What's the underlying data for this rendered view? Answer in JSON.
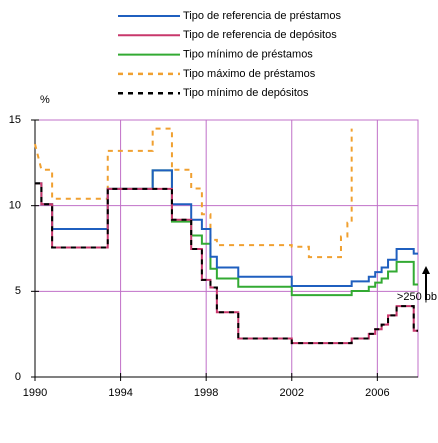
{
  "chart_data": {
    "type": "line",
    "y_axis_label": "%",
    "annotation": ">250 pb",
    "xlim": [
      1990,
      2007.9
    ],
    "xticks": [
      1990,
      1994,
      1998,
      2002,
      2006
    ],
    "ylim": [
      0,
      15
    ],
    "yticks": [
      0,
      5,
      10,
      15
    ],
    "grid": true,
    "legend": "top",
    "series": [
      {
        "name": "Tipo de referencia de préstamos",
        "color": "#1f5fbf",
        "dash": false,
        "x": [
          1990,
          1990.3,
          1990.3,
          1990.8,
          1990.8,
          1993.4,
          1993.4,
          1995.5,
          1995.5,
          1996.4,
          1996.4,
          1997.3,
          1997.3,
          1997.8,
          1997.8,
          1998.2,
          1998.2,
          1998.5,
          1998.5,
          1999.5,
          1999.5,
          2002,
          2002,
          2004.8,
          2004.8,
          2005.6,
          2005.6,
          2005.9,
          2005.9,
          2006.2,
          2006.2,
          2006.5,
          2006.5,
          2006.9,
          2006.9,
          2007.7,
          2007.7,
          2007.9
        ],
        "values": [
          11.3,
          11.3,
          10.08,
          10.08,
          8.64,
          8.64,
          10.98,
          10.98,
          12.06,
          12.06,
          10.08,
          10.08,
          9.18,
          9.18,
          8.64,
          8.64,
          7.02,
          7.02,
          6.39,
          6.39,
          5.85,
          5.85,
          5.31,
          5.31,
          5.58,
          5.58,
          5.85,
          5.85,
          6.12,
          6.12,
          6.39,
          6.39,
          6.84,
          6.84,
          7.47,
          7.47,
          7.2,
          7.2
        ]
      },
      {
        "name": "Tipo de referencia de depósitos",
        "color": "#c8386c",
        "dash": false,
        "x": [
          1990,
          1990.3,
          1990.3,
          1990.8,
          1990.8,
          1993.4,
          1993.4,
          1995.5,
          1995.5,
          1996.4,
          1996.4,
          1997.3,
          1997.3,
          1997.8,
          1997.8,
          1998.2,
          1998.2,
          1998.5,
          1998.5,
          1999.5,
          1999.5,
          2002,
          2002,
          2004.8,
          2004.8,
          2005.6,
          2005.6,
          2005.9,
          2005.9,
          2006.2,
          2006.2,
          2006.5,
          2006.5,
          2006.9,
          2006.9,
          2007.7,
          2007.7,
          2007.9
        ],
        "values": [
          11.3,
          11.3,
          10.08,
          10.08,
          7.56,
          7.56,
          10.98,
          10.98,
          10.98,
          10.98,
          9.18,
          9.18,
          7.47,
          7.47,
          5.67,
          5.67,
          5.22,
          5.22,
          3.78,
          3.78,
          2.25,
          2.25,
          1.98,
          1.98,
          2.25,
          2.25,
          2.52,
          2.52,
          2.79,
          2.79,
          3.06,
          3.06,
          3.6,
          3.6,
          4.14,
          4.14,
          2.7,
          2.7
        ]
      },
      {
        "name": "Tipo mínimo de préstamos",
        "color": "#33aa33",
        "dash": false,
        "x": [
          1990,
          1990.3,
          1990.3,
          1990.8,
          1990.8,
          1993.4,
          1993.4,
          1995.5,
          1995.5,
          1996.4,
          1996.4,
          1997.3,
          1997.3,
          1997.8,
          1997.8,
          1998.2,
          1998.2,
          1998.5,
          1998.5,
          1999.5,
          1999.5,
          2002,
          2002,
          2004.8,
          2004.8,
          2005.6,
          2005.6,
          2005.9,
          2005.9,
          2006.2,
          2006.2,
          2006.5,
          2006.5,
          2006.9,
          2006.9,
          2007.7,
          2007.7,
          2007.9
        ],
        "values": [
          11.3,
          11.3,
          10.08,
          10.08,
          8.64,
          8.64,
          10.98,
          10.98,
          12.06,
          12.06,
          9.07,
          9.07,
          8.26,
          8.26,
          7.78,
          7.78,
          6.32,
          6.32,
          5.75,
          5.75,
          5.27,
          5.27,
          4.78,
          4.78,
          5.02,
          5.02,
          5.27,
          5.27,
          5.51,
          5.51,
          5.75,
          5.75,
          6.16,
          6.16,
          6.72,
          6.72,
          5.4,
          5.4
        ]
      },
      {
        "name": "Tipo máximo de préstamos",
        "color": "#f0a030",
        "dash": true,
        "x": [
          1990,
          1990.3,
          1990.3,
          1990.8,
          1990.8,
          1993.4,
          1993.4,
          1995.5,
          1995.5,
          1996.4,
          1996.4,
          1997.3,
          1997.3,
          1997.8,
          1997.8,
          1998.2,
          1998.2,
          1998.5,
          1998.5,
          2002,
          2002,
          2002.8,
          2002.8,
          2004.3,
          2004.3,
          2004.6,
          2004.6,
          2004.8,
          2004.8
        ],
        "values": [
          13.6,
          12.1,
          12.1,
          12.1,
          10.4,
          10.4,
          13.2,
          13.2,
          14.5,
          14.5,
          12.1,
          12.1,
          11.0,
          11.0,
          9.5,
          9.5,
          8.0,
          8.0,
          7.7,
          7.7,
          7.6,
          7.6,
          7.0,
          7.0,
          8.2,
          8.2,
          9.0,
          9.0,
          14.5
        ]
      },
      {
        "name": "Tipo mínimo de depósitos",
        "color": "#000000",
        "dash": true,
        "x": [
          1990,
          1990.3,
          1990.3,
          1990.8,
          1990.8,
          1993.4,
          1993.4,
          1995.5,
          1995.5,
          1996.4,
          1996.4,
          1997.3,
          1997.3,
          1997.8,
          1997.8,
          1998.2,
          1998.2,
          1998.5,
          1998.5,
          1999.5,
          1999.5,
          2002,
          2002,
          2004.8,
          2004.8,
          2005.6,
          2005.6,
          2005.9,
          2005.9,
          2006.2,
          2006.2,
          2006.5,
          2006.5,
          2006.9,
          2006.9,
          2007.7,
          2007.7,
          2007.9
        ],
        "values": [
          11.3,
          11.3,
          10.08,
          10.08,
          7.56,
          7.56,
          10.98,
          10.98,
          10.98,
          10.98,
          9.18,
          9.18,
          7.47,
          7.47,
          5.67,
          5.67,
          5.22,
          5.22,
          3.78,
          3.78,
          2.25,
          2.25,
          1.98,
          1.98,
          2.25,
          2.25,
          2.52,
          2.52,
          2.79,
          2.79,
          3.06,
          3.06,
          3.6,
          3.6,
          4.14,
          4.14,
          2.7,
          2.7
        ]
      }
    ]
  }
}
